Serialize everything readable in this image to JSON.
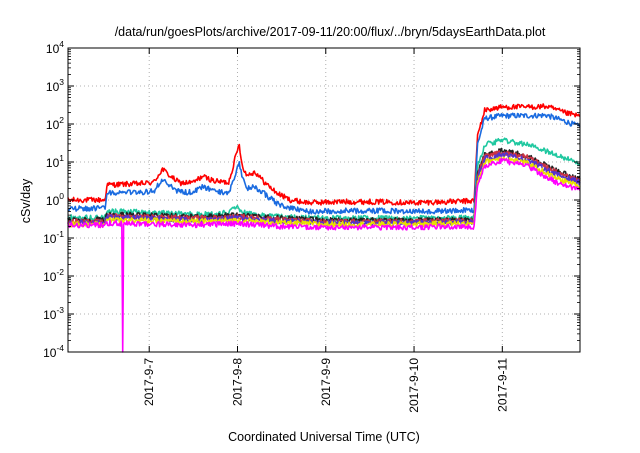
{
  "chart_data": {
    "type": "line",
    "title": "/data/run/goesPlots/archive/2017-09-11/20:00/flux/../bryn/5daysEarthData.plot",
    "xlabel": "Coordinated Universal Time (UTC)",
    "ylabel": "cSv/day",
    "yscale": "log",
    "ylim": [
      0.0001,
      10000
    ],
    "xlim": [
      6.08,
      11.88
    ],
    "x_unit": "day of September 2017",
    "grid": true,
    "legend": "none",
    "x_ticks": [
      {
        "value": 7,
        "label": "2017-9-7"
      },
      {
        "value": 8,
        "label": "2017-9-8"
      },
      {
        "value": 9,
        "label": "2017-9-9"
      },
      {
        "value": 10,
        "label": "2017-9-10"
      },
      {
        "value": 11,
        "label": "2017-9-11"
      }
    ],
    "y_ticks": [
      {
        "value": 0.0001,
        "base": "10",
        "exp": "-4"
      },
      {
        "value": 0.001,
        "base": "10",
        "exp": "-3"
      },
      {
        "value": 0.01,
        "base": "10",
        "exp": "-2"
      },
      {
        "value": 0.1,
        "base": "10",
        "exp": "-1"
      },
      {
        "value": 1,
        "base": "10",
        "exp": "0"
      },
      {
        "value": 10,
        "base": "10",
        "exp": "1"
      },
      {
        "value": 100,
        "base": "10",
        "exp": "2"
      },
      {
        "value": 1000,
        "base": "10",
        "exp": "3"
      },
      {
        "value": 10000,
        "base": "10",
        "exp": "4"
      }
    ],
    "series": [
      {
        "color": "#ff0000",
        "x": [
          6.08,
          6.5,
          6.52,
          6.9,
          7.05,
          7.15,
          7.25,
          7.35,
          7.5,
          7.6,
          7.75,
          7.9,
          7.98,
          8.02,
          8.05,
          8.1,
          8.2,
          8.3,
          8.45,
          8.6,
          8.8,
          9.2,
          9.6,
          10.0,
          10.4,
          10.68,
          10.72,
          10.8,
          11.0,
          11.3,
          11.5,
          11.7,
          11.88
        ],
        "y": [
          1.0,
          1.0,
          2.5,
          2.7,
          2.9,
          6.5,
          4.0,
          2.8,
          2.9,
          4.2,
          3.1,
          2.9,
          14,
          30,
          9,
          4.5,
          5.5,
          3.0,
          1.5,
          1.0,
          0.85,
          0.9,
          0.9,
          0.85,
          0.9,
          0.95,
          50,
          230,
          280,
          280,
          290,
          200,
          160
        ]
      },
      {
        "color": "#1a6be0",
        "x": [
          6.08,
          6.5,
          6.52,
          6.9,
          7.05,
          7.15,
          7.25,
          7.35,
          7.5,
          7.6,
          7.75,
          7.9,
          7.98,
          8.02,
          8.05,
          8.1,
          8.2,
          8.3,
          8.45,
          8.6,
          8.8,
          9.2,
          9.6,
          10.0,
          10.4,
          10.68,
          10.72,
          10.8,
          11.0,
          11.3,
          11.5,
          11.7,
          11.88
        ],
        "y": [
          0.6,
          0.6,
          1.5,
          1.6,
          1.7,
          3.4,
          2.2,
          1.6,
          1.6,
          2.2,
          1.7,
          1.5,
          5,
          10,
          4,
          2.0,
          2.2,
          1.5,
          0.8,
          0.6,
          0.5,
          0.52,
          0.52,
          0.5,
          0.52,
          0.55,
          30,
          140,
          165,
          165,
          170,
          120,
          85
        ]
      },
      {
        "color": "#20c8a0",
        "x": [
          6.08,
          6.5,
          6.52,
          6.9,
          7.2,
          7.5,
          7.8,
          8.0,
          8.1,
          8.3,
          8.6,
          9.0,
          9.5,
          10.0,
          10.4,
          10.68,
          10.72,
          10.8,
          11.0,
          11.3,
          11.6,
          11.88
        ],
        "y": [
          0.35,
          0.35,
          0.5,
          0.48,
          0.45,
          0.42,
          0.42,
          0.6,
          0.45,
          0.4,
          0.35,
          0.33,
          0.33,
          0.33,
          0.34,
          0.35,
          8,
          28,
          38,
          28,
          16,
          9
        ]
      },
      {
        "color": "#222222",
        "x": [
          6.08,
          6.5,
          6.52,
          6.9,
          7.5,
          8.0,
          8.5,
          9.0,
          9.5,
          10.0,
          10.4,
          10.68,
          10.72,
          10.8,
          11.0,
          11.3,
          11.6,
          11.88
        ],
        "y": [
          0.3,
          0.3,
          0.42,
          0.4,
          0.36,
          0.4,
          0.33,
          0.29,
          0.29,
          0.29,
          0.3,
          0.3,
          5,
          15,
          20,
          14,
          6,
          3.5
        ]
      },
      {
        "color": "#cc3344",
        "x": [
          6.08,
          6.5,
          6.52,
          6.9,
          7.5,
          8.0,
          8.5,
          9.0,
          9.5,
          10.0,
          10.4,
          10.68,
          10.72,
          10.8,
          11.0,
          11.3,
          11.6,
          11.88
        ],
        "y": [
          0.27,
          0.27,
          0.38,
          0.36,
          0.33,
          0.36,
          0.3,
          0.27,
          0.27,
          0.27,
          0.28,
          0.28,
          4.5,
          14,
          18,
          13,
          5.5,
          3.2
        ]
      },
      {
        "color": "#5533cc",
        "x": [
          6.08,
          6.5,
          6.52,
          6.9,
          7.5,
          8.0,
          8.5,
          9.0,
          9.5,
          10.0,
          10.4,
          10.68,
          10.72,
          10.8,
          11.0,
          11.3,
          11.6,
          11.88
        ],
        "y": [
          0.25,
          0.25,
          0.35,
          0.33,
          0.3,
          0.33,
          0.28,
          0.25,
          0.25,
          0.25,
          0.26,
          0.26,
          4,
          12,
          16,
          11,
          4.8,
          2.9
        ]
      },
      {
        "color": "#e8e000",
        "x": [
          6.08,
          6.5,
          6.52,
          6.9,
          7.5,
          8.0,
          8.5,
          9.0,
          9.5,
          10.0,
          10.4,
          10.68,
          10.72,
          10.8,
          11.0,
          11.3,
          11.6,
          11.88
        ],
        "y": [
          0.23,
          0.23,
          0.3,
          0.29,
          0.27,
          0.29,
          0.25,
          0.23,
          0.23,
          0.23,
          0.24,
          0.24,
          3,
          10,
          13,
          9,
          3.8,
          2.3
        ]
      },
      {
        "color": "#ff00ff",
        "x": [
          6.08,
          6.5,
          6.52,
          6.69,
          6.7,
          6.71,
          6.9,
          7.5,
          8.0,
          8.5,
          9.0,
          9.5,
          10.0,
          10.4,
          10.68,
          10.72,
          10.8,
          11.0,
          11.3,
          11.6,
          11.88
        ],
        "y": [
          0.22,
          0.22,
          0.25,
          0.24,
          0.0001,
          0.24,
          0.24,
          0.22,
          0.24,
          0.2,
          0.19,
          0.19,
          0.19,
          0.2,
          0.2,
          2.5,
          8,
          11,
          7.5,
          3,
          1.8
        ]
      }
    ]
  }
}
